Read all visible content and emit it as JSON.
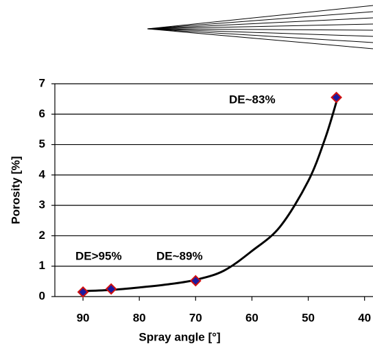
{
  "chart_data": {
    "type": "scatter",
    "x_label": "Spray angle [°]",
    "y_label": "Porosity [%]",
    "xlim": [
      95,
      38.5
    ],
    "ylim": [
      0,
      7
    ],
    "xticks": [
      90,
      80,
      70,
      60,
      50,
      40
    ],
    "yticks": [
      0,
      1,
      2,
      3,
      4,
      5,
      6,
      7
    ],
    "grid": true,
    "series": [
      {
        "type": "scatter",
        "color": "#1a1aa0",
        "edge_color": "#d01010",
        "x": [
          90,
          85,
          70,
          45
        ],
        "values": [
          0.15,
          0.25,
          0.52,
          6.55
        ]
      },
      {
        "type": "line",
        "color": "#000000",
        "x": [
          90,
          85,
          80,
          75,
          70,
          65,
          60,
          55,
          50,
          47,
          45
        ],
        "values": [
          0.18,
          0.22,
          0.3,
          0.4,
          0.55,
          0.85,
          1.5,
          2.3,
          3.8,
          5.2,
          6.4
        ]
      }
    ],
    "annotations": [
      "DE~83%",
      "DE>95%",
      "DE~89%"
    ]
  }
}
